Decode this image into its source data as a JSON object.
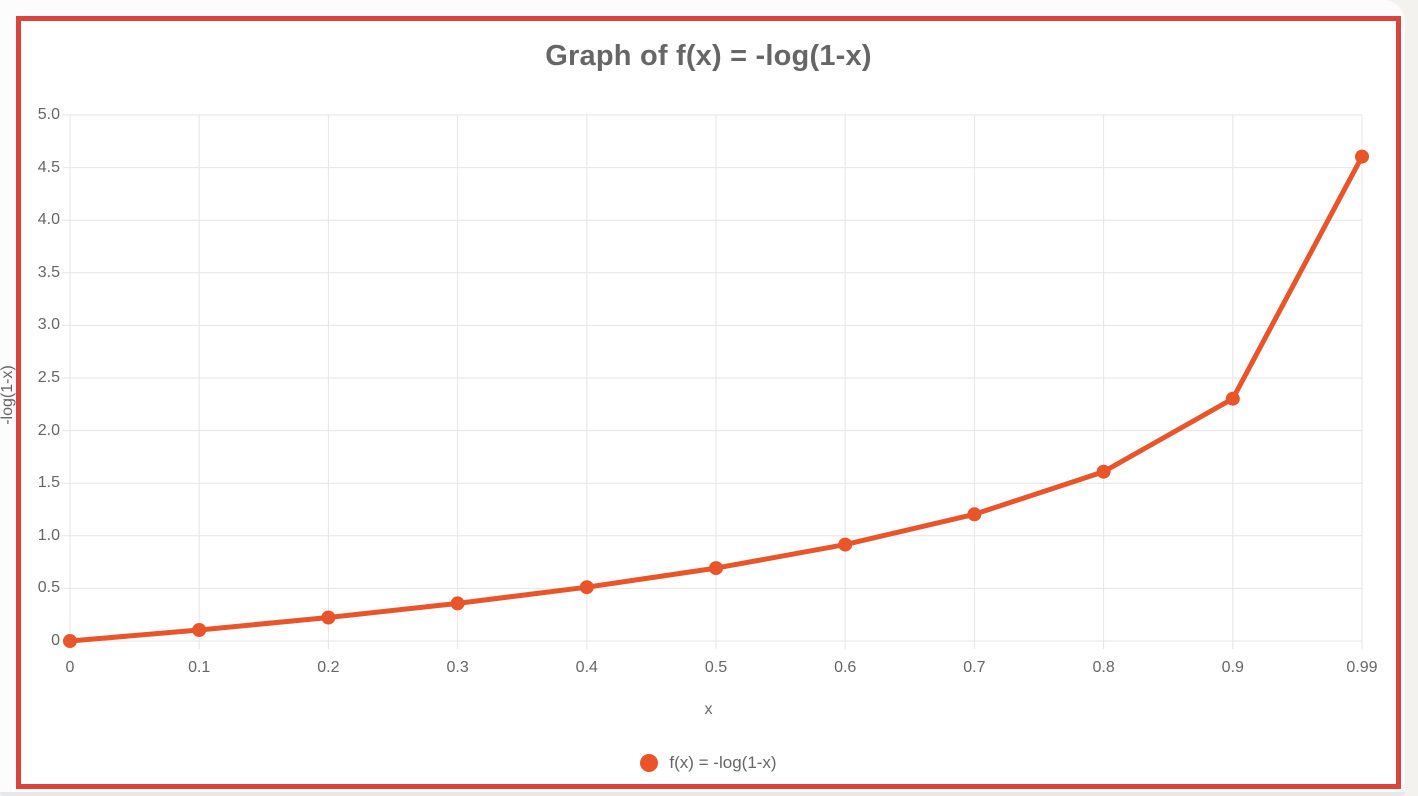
{
  "colors": {
    "backdrop": "#f3f2ef",
    "page_background": "#fcfcfc",
    "card_border": "#d9453d",
    "card_background": "#ffffff",
    "series_orange": "#e8552b",
    "text_gray": "#666666",
    "grid_gray": "#e5e5e5",
    "bottom_edge": "#e6e8eb"
  },
  "chart_data": {
    "type": "line",
    "title": "Graph of f(x) = -log(1-x)",
    "xlabel": "x",
    "ylabel": "-log(1-x)",
    "legend_position": "bottom",
    "grid": true,
    "categories": [
      "0",
      "0.1",
      "0.2",
      "0.3",
      "0.4",
      "0.5",
      "0.6",
      "0.7",
      "0.8",
      "0.9",
      "0.99"
    ],
    "x_values": [
      0,
      0.1,
      0.2,
      0.3,
      0.4,
      0.5,
      0.6,
      0.7,
      0.8,
      0.9,
      0.99
    ],
    "series": [
      {
        "name": "f(x) = -log(1-x)",
        "values": [
          0,
          0.105,
          0.223,
          0.357,
          0.511,
          0.693,
          0.916,
          1.204,
          1.609,
          2.303,
          4.605
        ],
        "color": "#e8552b",
        "point_radius": 7,
        "line_width": 5
      }
    ],
    "y_ticks": [
      "0",
      "0.5",
      "1.0",
      "1.5",
      "2.0",
      "2.5",
      "3.0",
      "3.5",
      "4.0",
      "4.5",
      "5.0"
    ],
    "ylim": [
      0,
      5
    ],
    "legend": [
      {
        "label": "f(x) = -log(1-x)",
        "color": "#e8552b",
        "marker": "circle"
      }
    ]
  }
}
